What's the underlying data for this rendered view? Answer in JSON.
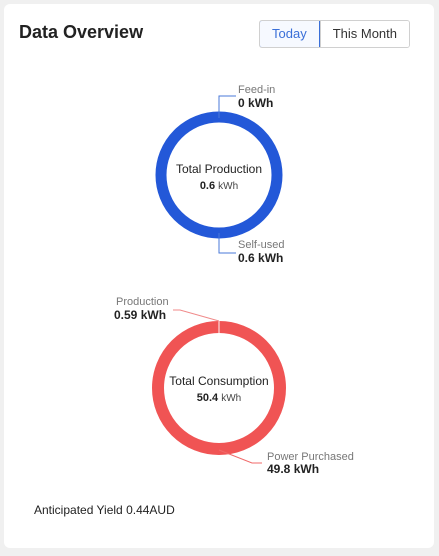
{
  "header": {
    "title": "Data Overview",
    "tabs": [
      {
        "label": "Today",
        "active": true
      },
      {
        "label": "This Month",
        "active": false
      }
    ]
  },
  "production_chart": {
    "center_label": "Total Production",
    "center_value": "0.6",
    "center_unit": "kWh",
    "color": "#2358d8",
    "top": {
      "label": "Feed-in",
      "value": "0",
      "unit": "kWh"
    },
    "bottom": {
      "label": "Self-used",
      "value": "0.6",
      "unit": "kWh"
    }
  },
  "consumption_chart": {
    "center_label": "Total Consumption",
    "center_value": "50.4",
    "center_unit": "kWh",
    "color": "#f05454",
    "top": {
      "label": "Production",
      "value": "0.59",
      "unit": "kWh"
    },
    "bottom": {
      "label": "Power Purchased",
      "value": "49.8",
      "unit": "kWh"
    }
  },
  "footer": {
    "anticipated_yield": "Anticipated Yield 0.44AUD"
  }
}
